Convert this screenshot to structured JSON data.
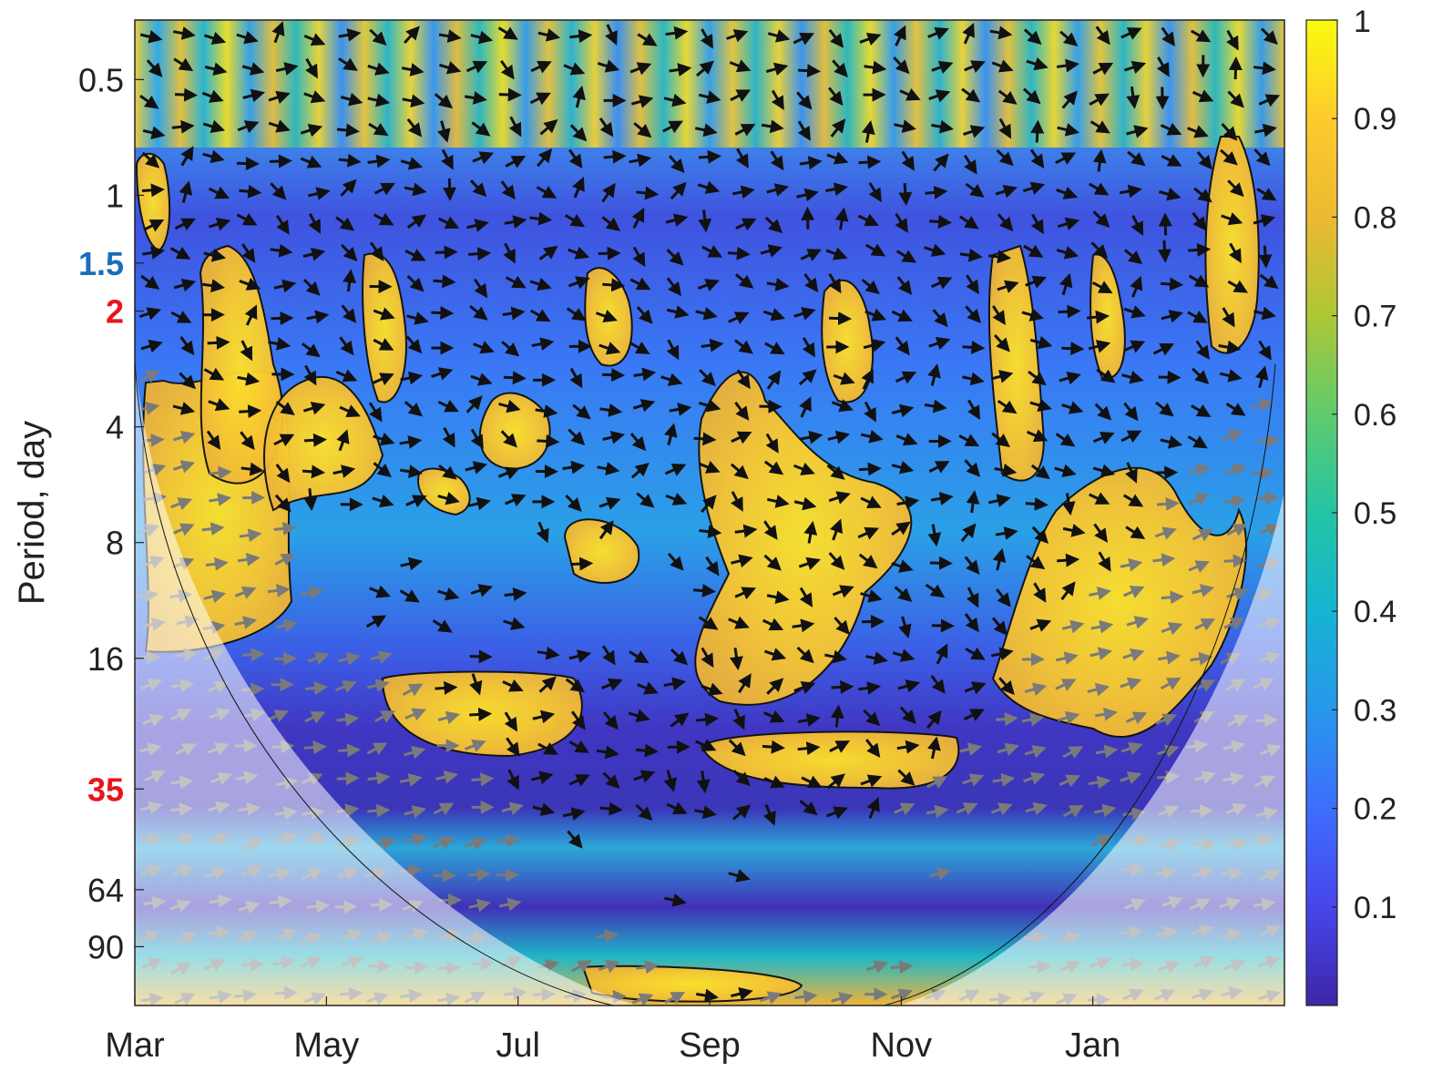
{
  "chart_data": {
    "type": "heatmap",
    "title": "",
    "xlabel": "",
    "ylabel": "Period, day",
    "x_ticks": [
      "Mar",
      "May",
      "Jul",
      "Sep",
      "Nov",
      "Jan"
    ],
    "y_ticks": [
      {
        "label": "0.5",
        "value": 0.5,
        "color": "#222222"
      },
      {
        "label": "1",
        "value": 1,
        "color": "#222222"
      },
      {
        "label": "1.5",
        "value": 1.5,
        "color": "#1a6fb5"
      },
      {
        "label": "2",
        "value": 2,
        "color": "#e8161b"
      },
      {
        "label": "4",
        "value": 4,
        "color": "#222222"
      },
      {
        "label": "8",
        "value": 8,
        "color": "#222222"
      },
      {
        "label": "16",
        "value": 16,
        "color": "#222222"
      },
      {
        "label": "35",
        "value": 35,
        "color": "#e8161b"
      },
      {
        "label": "64",
        "value": 64,
        "color": "#222222"
      },
      {
        "label": "90",
        "value": 90,
        "color": "#222222"
      }
    ],
    "y_scale": "log2",
    "y_reversed": true,
    "ylim": [
      0.35,
      128
    ],
    "colorbar": {
      "ticks": [
        "0.1",
        "0.2",
        "0.3",
        "0.4",
        "0.5",
        "0.6",
        "0.7",
        "0.8",
        "0.9",
        "1"
      ],
      "range": [
        0,
        1
      ],
      "colormap": "parula"
    },
    "legend": "none",
    "grid": false,
    "cone_of_influence": true,
    "arrows": "phase arrows (black inside cone, gray outside)"
  }
}
